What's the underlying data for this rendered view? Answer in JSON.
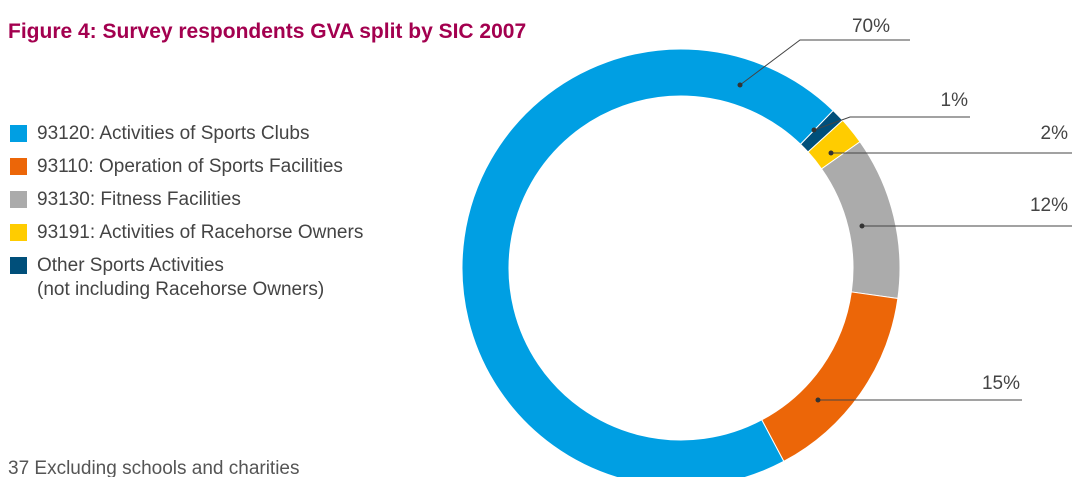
{
  "chart_data": {
    "type": "donut",
    "title": "Figure 4: Survey respondents GVA split by SIC 2007",
    "categories": [
      "93120: Activities of Sports Clubs",
      "93110: Operation of Sports Facilities",
      "93130: Fitness Facilities",
      "93191: Activities of Racehorse Owners",
      "Other Sports Activities\n(not including Racehorse Owners)"
    ],
    "values": [
      70,
      15,
      12,
      2,
      1
    ],
    "value_labels": [
      "70%",
      "15%",
      "12%",
      "2%",
      "1%"
    ],
    "colors": [
      "#009fe3",
      "#ec6608",
      "#ababab",
      "#ffcc00",
      "#004f7a"
    ],
    "footnote": "37 Excluding schools and charities"
  }
}
